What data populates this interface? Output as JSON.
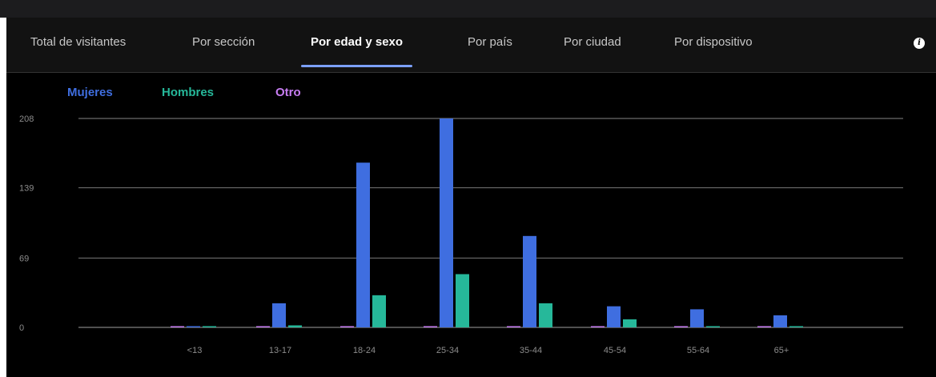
{
  "tabs": [
    {
      "label": "Total de visitantes"
    },
    {
      "label": "Por sección"
    },
    {
      "label": "Por edad y sexo"
    },
    {
      "label": "Por país"
    },
    {
      "label": "Por ciudad"
    },
    {
      "label": "Por dispositivo"
    }
  ],
  "active_tab": 2,
  "colors": {
    "mujeres": "#3f6ee0",
    "hombres": "#26b89a",
    "otro": "#c77df2",
    "gridline": "#6a6a6a",
    "tick_text": "#8c8c8c"
  },
  "chart_data": {
    "type": "bar",
    "categories": [
      "<13",
      "13-17",
      "18-24",
      "25-34",
      "35-44",
      "45-54",
      "55-64",
      "65+"
    ],
    "series": [
      {
        "name": "Mujeres",
        "values": [
          0,
          24,
          164,
          208,
          91,
          21,
          18,
          12
        ]
      },
      {
        "name": "Hombres",
        "values": [
          0,
          2,
          32,
          53,
          24,
          8,
          1,
          1
        ]
      },
      {
        "name": "Otro",
        "values": [
          0,
          0,
          0,
          1,
          1,
          1,
          0,
          0
        ]
      }
    ],
    "yticks": [
      0,
      69,
      139,
      208
    ],
    "ylim": [
      0,
      208
    ],
    "grid": true,
    "legend_position": "top-left",
    "title": "",
    "xlabel": "",
    "ylabel": ""
  }
}
